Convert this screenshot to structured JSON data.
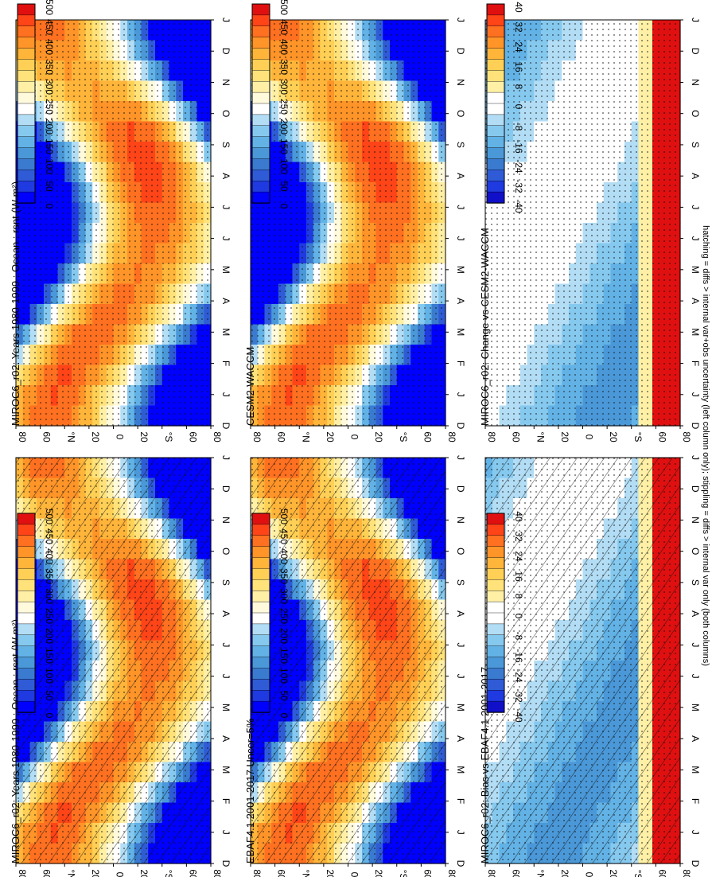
{
  "footnote": "hatching = diffs > internal var+obs uncertainty (left column only); stippling = diffs > internal var only (both columns)",
  "colors": {
    "abs_scale": [
      "#0000ff",
      "#1f3ae0",
      "#2f5cd6",
      "#3a7bd0",
      "#4a98d8",
      "#62b2e6",
      "#86c9ef",
      "#b2ddf5",
      "#ffffff",
      "#fffadc",
      "#fff0a6",
      "#ffe27a",
      "#ffd055",
      "#ffb43a",
      "#ff9428",
      "#ff7020",
      "#ff4418",
      "#e01010"
    ],
    "diff_scale": [
      "#1010c8",
      "#1f3ae0",
      "#2f5cd6",
      "#3a7bd0",
      "#4a98d8",
      "#62b2e6",
      "#86c9ef",
      "#b2ddf5",
      "#ffffff",
      "#ffffff",
      "#fff0a6",
      "#ffe27a",
      "#ffd055",
      "#ffb43a",
      "#ff9428",
      "#ff7020",
      "#ff4418",
      "#e01010"
    ]
  },
  "chart_data": [
    {
      "type": "heatmap",
      "title": "MIROC6_r02: Years 1980-1999 : Ocean : rsnt (W m²)",
      "x_tick_labels": [
        "D",
        "J",
        "F",
        "M",
        "A",
        "M",
        "J",
        "J",
        "A",
        "S",
        "O",
        "N",
        "D",
        "J"
      ],
      "y_tick_labels": [
        "80",
        "60",
        "°N",
        "20",
        "0",
        "20",
        "°S",
        "60",
        "80"
      ],
      "colorbar_labels": [
        "500",
        "450",
        "400",
        "350",
        "300",
        "250",
        "200",
        "150",
        "100",
        "50",
        "0"
      ],
      "colorbar_range": [
        0,
        500
      ],
      "field": "absolute",
      "hatching": true,
      "stippling": true
    },
    {
      "type": "heatmap",
      "title": "MIROC6_r02: Years 1980-1999 : Ocean : rsnt (W m²)",
      "x_tick_labels": [
        "D",
        "J",
        "F",
        "M",
        "A",
        "M",
        "J",
        "J",
        "A",
        "S",
        "O",
        "N",
        "D",
        "J"
      ],
      "y_tick_labels": [
        "80",
        "60",
        "°N",
        "20",
        "0",
        "20",
        "°S",
        "60",
        "80"
      ],
      "colorbar_labels": [
        "500",
        "450",
        "400",
        "350",
        "300",
        "250",
        "200",
        "150",
        "100",
        "50",
        "0"
      ],
      "colorbar_range": [
        0,
        500
      ],
      "field": "absolute",
      "hatching": false,
      "stippling": true
    },
    {
      "type": "heatmap",
      "title": "EBAF4.1 2001-2017 Uncer=5%",
      "x_tick_labels": [
        "D",
        "J",
        "F",
        "M",
        "A",
        "M",
        "J",
        "J",
        "A",
        "S",
        "O",
        "N",
        "D",
        "J"
      ],
      "y_tick_labels": [
        "80",
        "60",
        "°N",
        "20",
        "0",
        "20",
        "°S",
        "60",
        "80"
      ],
      "colorbar_labels": [
        "500",
        "450",
        "400",
        "350",
        "300",
        "250",
        "200",
        "150",
        "100",
        "50",
        "0"
      ],
      "colorbar_range": [
        0,
        500
      ],
      "field": "absolute",
      "hatching": true,
      "stippling": true
    },
    {
      "type": "heatmap",
      "title": "CESM2-WACCM",
      "x_tick_labels": [
        "D",
        "J",
        "F",
        "M",
        "A",
        "M",
        "J",
        "J",
        "A",
        "S",
        "O",
        "N",
        "D",
        "J"
      ],
      "y_tick_labels": [
        "80",
        "60",
        "°N",
        "20",
        "0",
        "20",
        "°S",
        "60",
        "80"
      ],
      "colorbar_labels": [
        "500",
        "450",
        "400",
        "350",
        "300",
        "250",
        "200",
        "150",
        "100",
        "50",
        "0"
      ],
      "colorbar_range": [
        0,
        500
      ],
      "field": "absolute",
      "hatching": false,
      "stippling": true
    },
    {
      "type": "heatmap",
      "title": "MIROC6_r02: Bias vs EBAF4.1 2001-2017",
      "x_tick_labels": [
        "D",
        "J",
        "F",
        "M",
        "A",
        "M",
        "J",
        "J",
        "A",
        "S",
        "O",
        "N",
        "D",
        "J"
      ],
      "y_tick_labels": [
        "80",
        "60",
        "°N",
        "20",
        "0",
        "20",
        "°S",
        "60",
        "80"
      ],
      "colorbar_labels": [
        "40",
        "32",
        "24",
        "16",
        "8",
        "0",
        "-8",
        "-16",
        "-24",
        "-32",
        "-40"
      ],
      "colorbar_range": [
        -40,
        40
      ],
      "field": "bias",
      "hatching": true,
      "stippling": true
    },
    {
      "type": "heatmap",
      "title": "MIROC6_r02: Change vs CESM2-WACCM",
      "x_tick_labels": [
        "D",
        "J",
        "F",
        "M",
        "A",
        "M",
        "J",
        "J",
        "A",
        "S",
        "O",
        "N",
        "D",
        "J"
      ],
      "y_tick_labels": [
        "80",
        "60",
        "°N",
        "20",
        "0",
        "20",
        "°S",
        "60",
        "80"
      ],
      "colorbar_labels": [
        "40",
        "32",
        "24",
        "16",
        "8",
        "0",
        "-8",
        "-16",
        "-24",
        "-32",
        "-40"
      ],
      "colorbar_range": [
        -40,
        40
      ],
      "field": "change",
      "hatching": false,
      "stippling": true
    }
  ]
}
